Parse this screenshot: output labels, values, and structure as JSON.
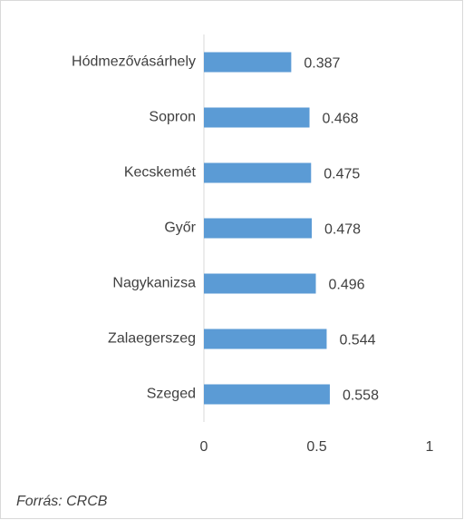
{
  "chart_data": {
    "type": "bar",
    "orientation": "horizontal",
    "categories": [
      "Hódmezővásárhely",
      "Sopron",
      "Kecskemét",
      "Győr",
      "Nagykanizsa",
      "Zalaegerszeg",
      "Szeged"
    ],
    "values": [
      0.387,
      0.468,
      0.475,
      0.478,
      0.496,
      0.544,
      0.558
    ],
    "color": "#5b9bd5",
    "xlim": [
      0,
      1
    ],
    "xticks": [
      0,
      0.5,
      1
    ],
    "grid": false,
    "source": "Forrás: CRCB"
  }
}
